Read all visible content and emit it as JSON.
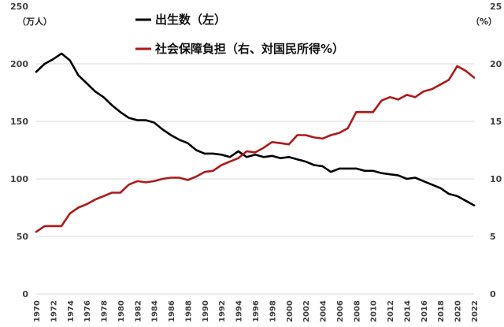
{
  "chart_data": {
    "type": "line",
    "x": [
      1970,
      1971,
      1972,
      1973,
      1974,
      1975,
      1976,
      1977,
      1978,
      1979,
      1980,
      1981,
      1982,
      1983,
      1984,
      1985,
      1986,
      1987,
      1988,
      1989,
      1990,
      1991,
      1992,
      1993,
      1994,
      1995,
      1996,
      1997,
      1998,
      1999,
      2000,
      2001,
      2002,
      2003,
      2004,
      2005,
      2006,
      2007,
      2008,
      2009,
      2010,
      2011,
      2012,
      2013,
      2014,
      2015,
      2016,
      2017,
      2018,
      2019,
      2020,
      2021,
      2022
    ],
    "x_ticks": [
      "1970",
      "1972",
      "1974",
      "1976",
      "1978",
      "1980",
      "1982",
      "1984",
      "1986",
      "1988",
      "1990",
      "1992",
      "1994",
      "1996",
      "1998",
      "2000",
      "2002",
      "2004",
      "2006",
      "2008",
      "2010",
      "2012",
      "2014",
      "2016",
      "2018",
      "2020",
      "2022"
    ],
    "left_axis": {
      "unit": "（万人）",
      "ylim": [
        0,
        250
      ],
      "ticks": [
        "0",
        "50",
        "100",
        "150",
        "200",
        "250"
      ]
    },
    "right_axis": {
      "unit": "（%）",
      "ylim": [
        0,
        25
      ],
      "ticks": [
        "0",
        "5",
        "10",
        "15",
        "20",
        "25"
      ]
    },
    "grid": "horizontal",
    "legend_placement": "top-center",
    "series": [
      {
        "name": "出生数（左）",
        "axis": "left",
        "color": "#000000",
        "values": [
          193,
          200,
          204,
          209,
          203,
          190,
          183,
          176,
          171,
          164,
          158,
          153,
          151,
          151,
          149,
          143,
          138,
          134,
          131,
          125,
          122,
          122,
          121,
          119,
          124,
          119,
          121,
          119,
          120,
          118,
          119,
          117,
          115,
          112,
          111,
          106,
          109,
          109,
          109,
          107,
          107,
          105,
          104,
          103,
          100,
          101,
          98,
          95,
          92,
          87,
          85,
          81,
          77
        ]
      },
      {
        "name": "社会保障負担（右、対国民所得%）",
        "axis": "right",
        "color": "#b11818",
        "values": [
          5.4,
          5.9,
          5.9,
          5.9,
          7.0,
          7.5,
          7.8,
          8.2,
          8.5,
          8.8,
          8.8,
          9.5,
          9.8,
          9.7,
          9.8,
          10.0,
          10.1,
          10.1,
          9.9,
          10.2,
          10.6,
          10.7,
          11.2,
          11.5,
          11.8,
          12.4,
          12.3,
          12.7,
          13.2,
          13.1,
          13.0,
          13.8,
          13.8,
          13.6,
          13.5,
          13.8,
          14.0,
          14.4,
          15.8,
          15.8,
          15.8,
          16.8,
          17.1,
          16.9,
          17.3,
          17.1,
          17.6,
          17.8,
          18.2,
          18.6,
          19.8,
          19.4,
          18.8
        ]
      }
    ]
  }
}
